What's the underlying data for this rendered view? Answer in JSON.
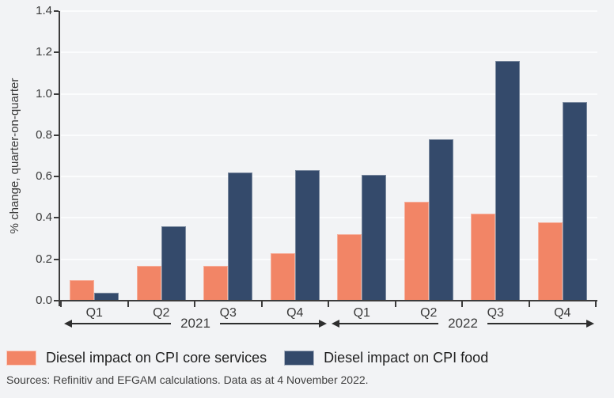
{
  "page": {
    "background_color": "#f2f3f5",
    "gridline_color": "#fbfcfd",
    "axis_color": "#3c3c3c"
  },
  "chart_data": {
    "type": "bar",
    "title": "",
    "xlabel": "",
    "ylabel": "% change, quarter-on-quarter",
    "ylim": [
      0,
      1.4
    ],
    "yticks": [
      0.0,
      0.2,
      0.4,
      0.6,
      0.8,
      1.0,
      1.2,
      1.4
    ],
    "ytick_labels": [
      "0.0",
      "0.2",
      "0.4",
      "0.6",
      "0.8",
      "1.0",
      "1.2",
      "1.4"
    ],
    "grid": "horizontal",
    "legend_position": "bottom-left",
    "categories": [
      "Q1",
      "Q2",
      "Q3",
      "Q4",
      "Q1",
      "Q2",
      "Q3",
      "Q4"
    ],
    "year_groups": [
      {
        "label": "2021",
        "quarter_indexes": [
          0,
          1,
          2,
          3
        ]
      },
      {
        "label": "2022",
        "quarter_indexes": [
          4,
          5,
          6,
          7
        ]
      }
    ],
    "series": [
      {
        "name": "Diesel impact on CPI core services",
        "color": "#f28566",
        "values": [
          0.1,
          0.17,
          0.17,
          0.23,
          0.32,
          0.48,
          0.42,
          0.38
        ]
      },
      {
        "name": "Diesel impact on CPI food",
        "color": "#344a6b",
        "values": [
          0.04,
          0.36,
          0.62,
          0.63,
          0.61,
          0.78,
          1.16,
          0.96
        ]
      }
    ]
  },
  "footer": {
    "source_note": "Sources: Refinitiv and EFGAM calculations. Data as at 4 November 2022."
  }
}
